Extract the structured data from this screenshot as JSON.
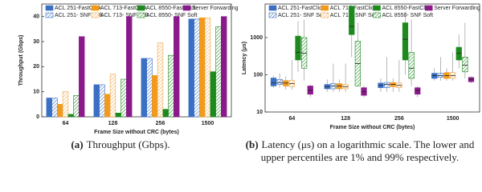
{
  "chart_data": [
    {
      "type": "bar",
      "caption_label": "(a)",
      "caption": "Throughput (Gbps).",
      "x_label": "Frame Size without CRC (bytes)",
      "y_label": "Throughput (Gbps)",
      "categories": [
        "64",
        "128",
        "256",
        "1500"
      ],
      "ylim": [
        0,
        45
      ],
      "yticks": [
        0,
        10,
        20,
        30,
        40
      ],
      "series": [
        {
          "name": "ACL 251-FastClick",
          "color": "#3a6fc4",
          "hatch": false,
          "values": [
            7.5,
            12.8,
            23.3,
            39
          ]
        },
        {
          "name": "ACL 251- SNF Soft",
          "color": "#3a6fc4",
          "hatch": true,
          "values": [
            7.5,
            12.8,
            23.3,
            39
          ]
        },
        {
          "name": "ACL 713-FastClick",
          "color": "#f29a1c",
          "hatch": false,
          "values": [
            5,
            9,
            16.5,
            39.5
          ]
        },
        {
          "name": "ACL 713- SNF Soft",
          "color": "#f0a84a",
          "hatch": true,
          "values": [
            10,
            17,
            29.5,
            39.5
          ]
        },
        {
          "name": "ACL 8550-FastClick",
          "color": "#1e8a1e",
          "hatch": false,
          "values": [
            1,
            1.5,
            3,
            18
          ]
        },
        {
          "name": "ACL 8550- SNF Soft",
          "color": "#1e8a1e",
          "hatch": true,
          "values": [
            8.5,
            15,
            24.5,
            36
          ]
        },
        {
          "name": "Server Forwarding",
          "color": "#8a1a8a",
          "hatch": false,
          "values": [
            32,
            40,
            40,
            40
          ]
        }
      ]
    },
    {
      "type": "box",
      "log_scale": true,
      "caption_label": "(b)",
      "caption": "Latency (μs) on a logarithmic scale. The lower and upper percentiles are 1% and 99% respectively.",
      "x_label": "Frame Size without CRC (bytes)",
      "y_label": "Latency (μs)",
      "categories": [
        "64",
        "128",
        "256",
        "1500"
      ],
      "ylim": [
        10,
        8000
      ],
      "yticks": [
        10,
        100,
        1000
      ],
      "series": [
        {
          "name": "ACL 251-FastClick",
          "color": "#3a6fc4",
          "hatch": false,
          "values": [
            {
              "low": 45,
              "q1": 50,
              "median": 60,
              "q3": 82,
              "high": 95
            },
            {
              "low": 35,
              "q1": 42,
              "median": 48,
              "q3": 55,
              "high": 75
            },
            {
              "low": 35,
              "q1": 45,
              "median": 52,
              "q3": 60,
              "high": 80
            },
            {
              "low": 70,
              "q1": 80,
              "median": 95,
              "q3": 110,
              "high": 150
            }
          ]
        },
        {
          "name": "ACL 251- SNF Soft",
          "color": "#3a6fc4",
          "hatch": true,
          "values": [
            {
              "low": 45,
              "q1": 55,
              "median": 62,
              "q3": 75,
              "high": 110
            },
            {
              "low": 35,
              "q1": 42,
              "median": 50,
              "q3": 58,
              "high": 200
            },
            {
              "low": 35,
              "q1": 45,
              "median": 55,
              "q3": 62,
              "high": 300
            },
            {
              "low": 70,
              "q1": 85,
              "median": 95,
              "q3": 110,
              "high": 300
            }
          ]
        },
        {
          "name": "ACL 713-FastClick",
          "color": "#f29a1c",
          "hatch": false,
          "values": [
            {
              "low": 40,
              "q1": 50,
              "median": 60,
              "q3": 70,
              "high": 90
            },
            {
              "low": 35,
              "q1": 42,
              "median": 50,
              "q3": 58,
              "high": 75
            },
            {
              "low": 35,
              "q1": 48,
              "median": 55,
              "q3": 62,
              "high": 80
            },
            {
              "low": 70,
              "q1": 80,
              "median": 95,
              "q3": 115,
              "high": 150
            }
          ]
        },
        {
          "name": "ACL 713- SNF Soft",
          "color": "#f0a84a",
          "hatch": true,
          "values": [
            {
              "low": 40,
              "q1": 48,
              "median": 58,
              "q3": 70,
              "high": 250
            },
            {
              "low": 35,
              "q1": 42,
              "median": 48,
              "q3": 55,
              "high": 200
            },
            {
              "low": 35,
              "q1": 45,
              "median": 52,
              "q3": 60,
              "high": 250
            },
            {
              "low": 70,
              "q1": 80,
              "median": 95,
              "q3": 115,
              "high": 400
            }
          ]
        },
        {
          "name": "ACL 8550-FastClick",
          "color": "#1e8a1e",
          "hatch": false,
          "values": [
            {
              "low": 120,
              "q1": 250,
              "median": 400,
              "q3": 1100,
              "high": 2800
            },
            {
              "low": 300,
              "q1": 1200,
              "median": 2000,
              "q3": 7000,
              "high": 7500
            },
            {
              "low": 100,
              "q1": 250,
              "median": 900,
              "q3": 2500,
              "high": 5000
            },
            {
              "low": 150,
              "q1": 250,
              "median": 380,
              "q3": 550,
              "high": 1200
            }
          ]
        },
        {
          "name": "ACL 8550- SNF Soft",
          "color": "#1e8a1e",
          "hatch": true,
          "values": [
            {
              "low": 70,
              "q1": 150,
              "median": 380,
              "q3": 1000,
              "high": 3000
            },
            {
              "low": 50,
              "q1": 50,
              "median": 200,
              "q3": 800,
              "high": 2500
            },
            {
              "low": 50,
              "q1": 80,
              "median": 150,
              "q3": 400,
              "high": 3000
            },
            {
              "low": 80,
              "q1": 120,
              "median": 180,
              "q3": 300,
              "high": 2500
            }
          ]
        },
        {
          "name": "Server Forwarding",
          "color": "#8a1a8a",
          "hatch": false,
          "values": [
            {
              "low": 25,
              "q1": 30,
              "median": 38,
              "q3": 50,
              "high": 55
            },
            {
              "low": 25,
              "q1": 28,
              "median": 35,
              "q3": 45,
              "high": 50
            },
            {
              "low": 25,
              "q1": 30,
              "median": 38,
              "q3": 45,
              "high": 50
            },
            {
              "low": 60,
              "q1": 65,
              "median": 75,
              "q3": 85,
              "high": 90
            }
          ]
        }
      ]
    }
  ]
}
